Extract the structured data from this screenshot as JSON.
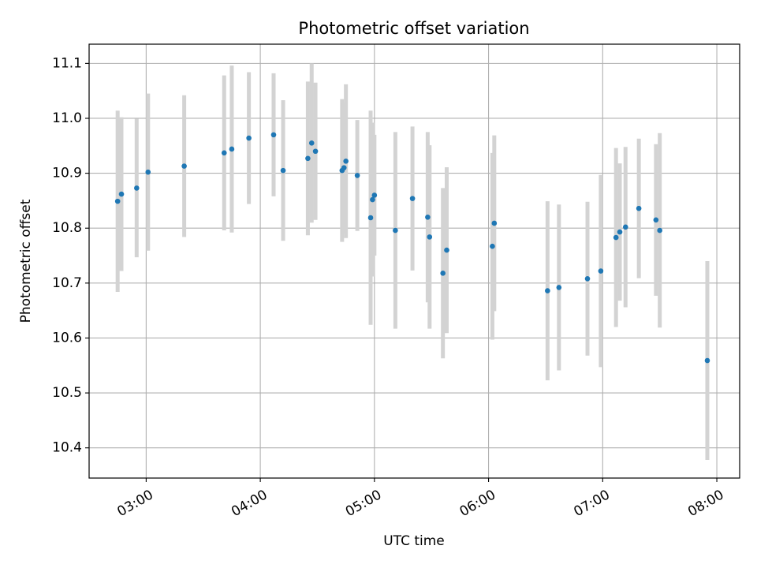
{
  "chart_data": {
    "type": "scatter",
    "title": "Photometric offset variation",
    "xlabel": "UTC time",
    "ylabel": "Photometric offset",
    "xlim": [
      "02:30",
      "08:12"
    ],
    "ylim": [
      10.345,
      11.135
    ],
    "x_ticks": [
      "03:00",
      "04:00",
      "05:00",
      "06:00",
      "07:00",
      "08:00"
    ],
    "y_ticks": [
      10.4,
      10.5,
      10.6,
      10.7,
      10.8,
      10.9,
      11.0,
      11.1
    ],
    "y_tick_labels": [
      "10.4",
      "10.5",
      "10.6",
      "10.7",
      "10.8",
      "10.9",
      "11.0",
      "11.1"
    ],
    "grid": true,
    "marker_color": "#1f77b4",
    "errorbar_color": "#d3d3d3",
    "points": [
      {
        "x": "02:45",
        "y": 10.849,
        "err": 0.165
      },
      {
        "x": "02:47",
        "y": 10.862,
        "err": 0.14
      },
      {
        "x": "02:55",
        "y": 10.873,
        "err": 0.126
      },
      {
        "x": "03:01",
        "y": 10.902,
        "err": 0.143
      },
      {
        "x": "03:20",
        "y": 10.913,
        "err": 0.129
      },
      {
        "x": "03:41",
        "y": 10.937,
        "err": 0.141
      },
      {
        "x": "03:45",
        "y": 10.944,
        "err": 0.152
      },
      {
        "x": "03:54",
        "y": 10.964,
        "err": 0.12
      },
      {
        "x": "04:07",
        "y": 10.97,
        "err": 0.112
      },
      {
        "x": "04:12",
        "y": 10.905,
        "err": 0.128
      },
      {
        "x": "04:25",
        "y": 10.927,
        "err": 0.14
      },
      {
        "x": "04:27",
        "y": 10.955,
        "err": 0.145
      },
      {
        "x": "04:29",
        "y": 10.94,
        "err": 0.125
      },
      {
        "x": "04:43",
        "y": 10.905,
        "err": 0.13
      },
      {
        "x": "04:44",
        "y": 10.91,
        "err": 0.12
      },
      {
        "x": "04:45",
        "y": 10.922,
        "err": 0.14
      },
      {
        "x": "04:51",
        "y": 10.896,
        "err": 0.101
      },
      {
        "x": "04:58",
        "y": 10.819,
        "err": 0.195
      },
      {
        "x": "04:59",
        "y": 10.852,
        "err": 0.14
      },
      {
        "x": "05:00",
        "y": 10.86,
        "err": 0.11
      },
      {
        "x": "05:11",
        "y": 10.796,
        "err": 0.179
      },
      {
        "x": "05:20",
        "y": 10.854,
        "err": 0.131
      },
      {
        "x": "05:28",
        "y": 10.82,
        "err": 0.155
      },
      {
        "x": "05:29",
        "y": 10.784,
        "err": 0.167
      },
      {
        "x": "05:36",
        "y": 10.718,
        "err": 0.155
      },
      {
        "x": "05:38",
        "y": 10.76,
        "err": 0.151
      },
      {
        "x": "06:02",
        "y": 10.767,
        "err": 0.17
      },
      {
        "x": "06:03",
        "y": 10.809,
        "err": 0.16
      },
      {
        "x": "06:31",
        "y": 10.686,
        "err": 0.163
      },
      {
        "x": "06:37",
        "y": 10.692,
        "err": 0.151
      },
      {
        "x": "06:52",
        "y": 10.708,
        "err": 0.14
      },
      {
        "x": "06:59",
        "y": 10.722,
        "err": 0.175
      },
      {
        "x": "07:07",
        "y": 10.783,
        "err": 0.163
      },
      {
        "x": "07:09",
        "y": 10.793,
        "err": 0.125
      },
      {
        "x": "07:12",
        "y": 10.802,
        "err": 0.146
      },
      {
        "x": "07:19",
        "y": 10.836,
        "err": 0.127
      },
      {
        "x": "07:28",
        "y": 10.815,
        "err": 0.138
      },
      {
        "x": "07:30",
        "y": 10.796,
        "err": 0.177
      },
      {
        "x": "07:55",
        "y": 10.559,
        "err": 0.181
      }
    ]
  }
}
